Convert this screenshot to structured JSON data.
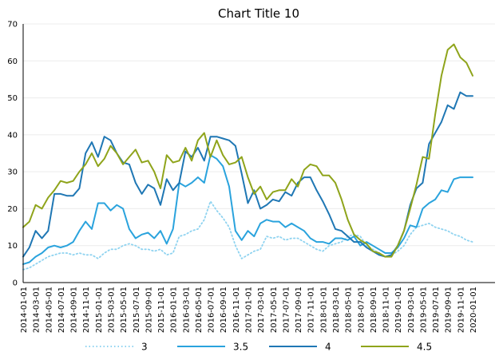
{
  "chart_data": {
    "type": "line",
    "title": "Chart Title 10",
    "xlabel": "",
    "ylabel": "",
    "ylim": [
      0,
      70
    ],
    "yticks": [
      0,
      10,
      20,
      30,
      40,
      50,
      60,
      70
    ],
    "grid": true,
    "legend_position": "bottom",
    "x": [
      "2014-01-01",
      "2014-02-01",
      "2014-03-01",
      "2014-04-01",
      "2014-05-01",
      "2014-06-01",
      "2014-07-01",
      "2014-08-01",
      "2014-09-01",
      "2014-10-01",
      "2014-11-01",
      "2014-12-01",
      "2015-01-01",
      "2015-02-01",
      "2015-03-01",
      "2015-04-01",
      "2015-05-01",
      "2015-06-01",
      "2015-07-01",
      "2015-08-01",
      "2015-09-01",
      "2015-10-01",
      "2015-11-01",
      "2015-12-01",
      "2016-01-01",
      "2016-02-01",
      "2016-03-01",
      "2016-04-01",
      "2016-05-01",
      "2016-06-01",
      "2016-07-01",
      "2016-08-01",
      "2016-09-01",
      "2016-10-01",
      "2016-11-01",
      "2016-12-01",
      "2017-01-01",
      "2017-02-01",
      "2017-03-01",
      "2017-04-01",
      "2017-05-01",
      "2017-06-01",
      "2017-07-01",
      "2017-08-01",
      "2017-09-01",
      "2017-10-01",
      "2017-11-01",
      "2017-12-01",
      "2018-01-01",
      "2018-02-01",
      "2018-03-01",
      "2018-04-01",
      "2018-05-01",
      "2018-06-01",
      "2018-07-01",
      "2018-08-01",
      "2018-09-01",
      "2018-10-01",
      "2018-11-01",
      "2018-12-01",
      "2019-01-01",
      "2019-02-01",
      "2019-03-01",
      "2019-04-01",
      "2019-05-01",
      "2019-06-01",
      "2019-07-01",
      "2019-08-01",
      "2019-09-01",
      "2019-10-01",
      "2019-11-01",
      "2019-12-01",
      "2020-01-01"
    ],
    "xtick_labels": [
      "2014-01-01",
      "2014-03-01",
      "2014-05-01",
      "2014-07-01",
      "2014-09-01",
      "2014-11-01",
      "2015-01-01",
      "2015-03-01",
      "2015-05-01",
      "2015-07-01",
      "2015-09-01",
      "2015-11-01",
      "2016-01-01",
      "2016-03-01",
      "2016-05-01",
      "2016-07-01",
      "2016-09-01",
      "2016-11-01",
      "2017-01-01",
      "2017-03-01",
      "2017-05-01",
      "2017-07-01",
      "2017-09-01",
      "2017-11-01",
      "2018-01-01",
      "2018-03-01",
      "2018-05-01",
      "2018-07-01",
      "2018-09-01",
      "2018-11-01",
      "2019-01-01",
      "2019-03-01",
      "2019-05-01",
      "2019-07-01",
      "2019-09-01",
      "2019-11-01",
      "2020-01-01"
    ],
    "series": [
      {
        "name": "3",
        "color": "#8fd3f0",
        "style": "dotted",
        "values": [
          3.5,
          4.0,
          5.0,
          6.0,
          7.0,
          7.5,
          8.0,
          8.0,
          7.5,
          8.0,
          7.5,
          7.5,
          6.5,
          8.0,
          9.0,
          9.0,
          10.0,
          10.5,
          10.0,
          9.0,
          9.0,
          8.5,
          9.0,
          7.5,
          8.0,
          12.5,
          13.0,
          14.0,
          14.5,
          17.0,
          22.0,
          19.5,
          17.5,
          15.0,
          10.0,
          6.5,
          7.5,
          8.5,
          9.0,
          12.5,
          12.0,
          12.5,
          11.5,
          12.0,
          12.0,
          11.0,
          10.0,
          9.0,
          8.5,
          10.0,
          10.5,
          11.0,
          12.5,
          13.0,
          12.5,
          10.0,
          9.0,
          8.0,
          7.0,
          7.5,
          8.5,
          10.0,
          13.0,
          15.0,
          15.5,
          16.0,
          15.0,
          14.5,
          14.0,
          13.0,
          12.5,
          11.5,
          11.0
        ]
      },
      {
        "name": "3.5",
        "color": "#2aa3dd",
        "style": "solid",
        "values": [
          5.0,
          5.5,
          7.0,
          8.0,
          9.5,
          10.0,
          9.5,
          10.0,
          11.0,
          14.0,
          16.5,
          14.5,
          21.5,
          21.5,
          19.5,
          21.0,
          20.0,
          14.5,
          12.0,
          13.0,
          13.5,
          12.0,
          14.0,
          10.5,
          14.5,
          27.0,
          26.0,
          27.0,
          28.5,
          27.0,
          34.5,
          33.5,
          31.5,
          26.0,
          14.0,
          11.5,
          14.0,
          12.5,
          16.0,
          17.0,
          16.5,
          16.5,
          15.0,
          16.0,
          15.0,
          14.0,
          12.0,
          11.0,
          11.0,
          10.5,
          12.0,
          12.0,
          11.5,
          12.5,
          10.0,
          11.0,
          10.0,
          9.0,
          8.0,
          8.0,
          9.5,
          12.0,
          15.5,
          15.0,
          20.0,
          21.5,
          22.5,
          25.0,
          24.5,
          28.0,
          28.5,
          28.5,
          28.5
        ]
      },
      {
        "name": "4",
        "color": "#1f77b4",
        "style": "solid",
        "values": [
          7.0,
          9.5,
          14.0,
          12.0,
          14.0,
          24.0,
          24.0,
          23.5,
          23.5,
          25.5,
          35.0,
          38.0,
          34.0,
          39.5,
          38.5,
          35.0,
          32.5,
          32.0,
          27.0,
          24.0,
          26.5,
          25.5,
          21.0,
          28.0,
          25.0,
          27.0,
          35.5,
          34.0,
          36.5,
          33.0,
          39.5,
          39.5,
          39.0,
          38.5,
          37.0,
          29.5,
          21.5,
          25.0,
          20.0,
          21.0,
          22.5,
          22.0,
          24.5,
          23.5,
          27.0,
          28.5,
          28.5,
          25.0,
          22.0,
          18.5,
          14.5,
          14.0,
          12.5,
          11.0,
          11.0,
          9.5,
          8.5,
          7.5,
          7.0,
          7.5,
          10.0,
          14.0,
          21.0,
          25.5,
          27.0,
          37.5,
          40.5,
          43.5,
          48.0,
          47.0,
          51.5,
          50.5,
          50.5
        ]
      },
      {
        "name": "4.5",
        "color": "#8fa41b",
        "style": "solid",
        "values": [
          15.0,
          16.5,
          21.0,
          20.0,
          23.0,
          25.0,
          27.5,
          27.0,
          27.5,
          30.0,
          32.0,
          35.0,
          31.5,
          33.5,
          37.0,
          35.0,
          32.0,
          34.0,
          36.0,
          32.5,
          33.0,
          30.0,
          25.5,
          34.5,
          32.5,
          33.0,
          36.5,
          33.0,
          38.5,
          40.5,
          34.0,
          38.5,
          34.5,
          32.0,
          32.5,
          34.0,
          28.5,
          24.0,
          26.0,
          22.5,
          24.5,
          25.0,
          25.0,
          28.0,
          26.0,
          30.5,
          32.0,
          31.5,
          29.0,
          29.0,
          27.0,
          22.5,
          17.0,
          13.0,
          11.5,
          10.5,
          8.5,
          8.0,
          7.0,
          7.0,
          10.0,
          14.0,
          20.0,
          26.5,
          34.0,
          33.5,
          45.5,
          56.0,
          63.0,
          64.5,
          61.0,
          59.5,
          56.0
        ]
      }
    ]
  }
}
